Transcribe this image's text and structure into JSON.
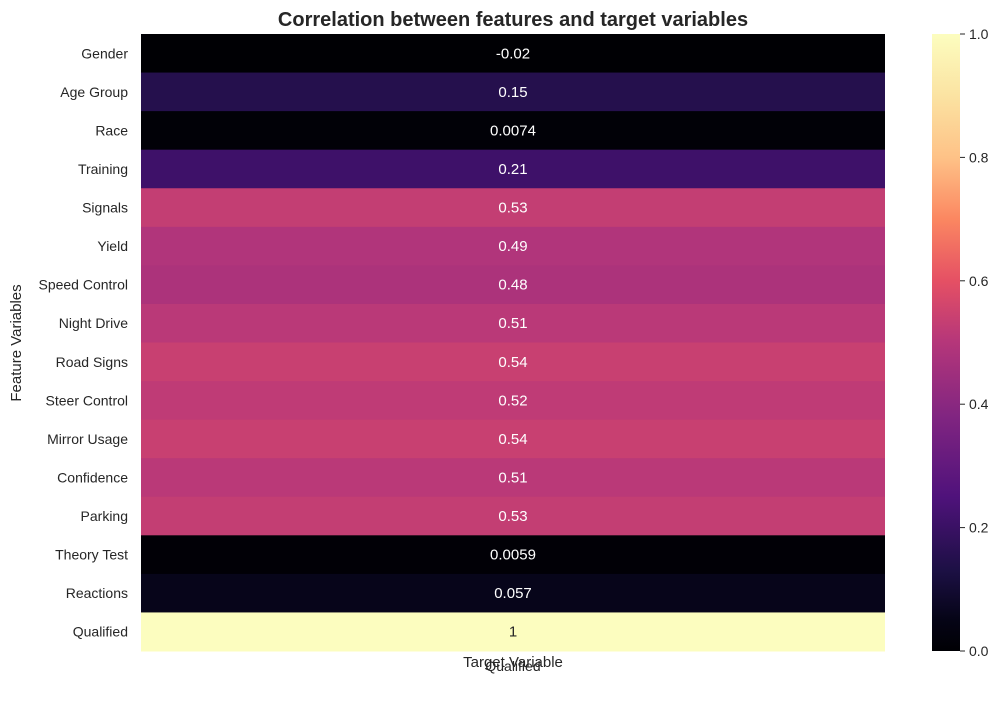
{
  "chart_data": {
    "type": "heatmap",
    "title": "Correlation between features and target variables",
    "xlabel": "Target Variable",
    "ylabel": "Feature Variables",
    "columns": [
      "Qualified"
    ],
    "rows": [
      "Gender",
      "Age Group",
      "Race",
      "Training",
      "Signals",
      "Yield",
      "Speed Control",
      "Night Drive",
      "Road Signs",
      "Steer Control",
      "Mirror Usage",
      "Confidence",
      "Parking",
      "Theory Test",
      "Reactions",
      "Qualified"
    ],
    "values": [
      -0.02,
      0.15,
      0.0074,
      0.21,
      0.53,
      0.49,
      0.48,
      0.51,
      0.54,
      0.52,
      0.54,
      0.51,
      0.53,
      0.0059,
      0.057,
      1
    ],
    "annotations": [
      "-0.02",
      "0.15",
      "0.0074",
      "0.21",
      "0.53",
      "0.49",
      "0.48",
      "0.51",
      "0.54",
      "0.52",
      "0.54",
      "0.51",
      "0.53",
      "0.0059",
      "0.057",
      "1"
    ],
    "colormap": "magma",
    "vmin": 0.0,
    "vmax": 1.0,
    "colorbar_ticks": [
      "0.0",
      "0.2",
      "0.4",
      "0.6",
      "0.8",
      "1.0"
    ],
    "grid": false
  }
}
